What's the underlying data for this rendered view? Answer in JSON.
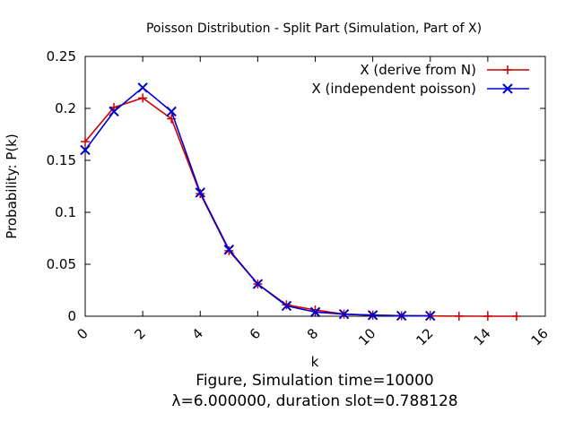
{
  "chart_data": {
    "type": "line",
    "title": "Poisson Distribution - Split Part (Simulation, Part of X)",
    "xlabel": "k",
    "ylabel": "Probability: P(k)",
    "xlim": [
      0,
      16
    ],
    "ylim": [
      0,
      0.25
    ],
    "x_ticks": [
      "0",
      "2",
      "4",
      "6",
      "8",
      "10",
      "12",
      "14",
      "16"
    ],
    "y_ticks": [
      "0",
      "0.05",
      "0.1",
      "0.15",
      "0.2",
      "0.25"
    ],
    "legend_position": "top-right",
    "grid": false,
    "series": [
      {
        "name": "X (derive from N)",
        "color": "#cc0000",
        "marker": "plus",
        "x": [
          0,
          1,
          2,
          3,
          4,
          5,
          6,
          7,
          8,
          9,
          10,
          11,
          12,
          13,
          14,
          15
        ],
        "y": [
          0.168,
          0.201,
          0.21,
          0.19,
          0.118,
          0.063,
          0.031,
          0.011,
          0.006,
          0.002,
          0.001,
          0.0005,
          0.0003,
          0.0001,
          0.0,
          0.0
        ]
      },
      {
        "name": "X (independent poisson)",
        "color": "#0000cc",
        "marker": "cross",
        "x": [
          0,
          1,
          2,
          3,
          4,
          5,
          6,
          7,
          8,
          9,
          10,
          11,
          12
        ],
        "y": [
          0.16,
          0.197,
          0.22,
          0.197,
          0.119,
          0.064,
          0.031,
          0.01,
          0.004,
          0.002,
          0.001,
          0.0005,
          0.0004
        ]
      }
    ],
    "footer_line1": "Figure, Simulation time=10000",
    "footer_line2": "λ=6.000000, duration slot=0.788128"
  }
}
